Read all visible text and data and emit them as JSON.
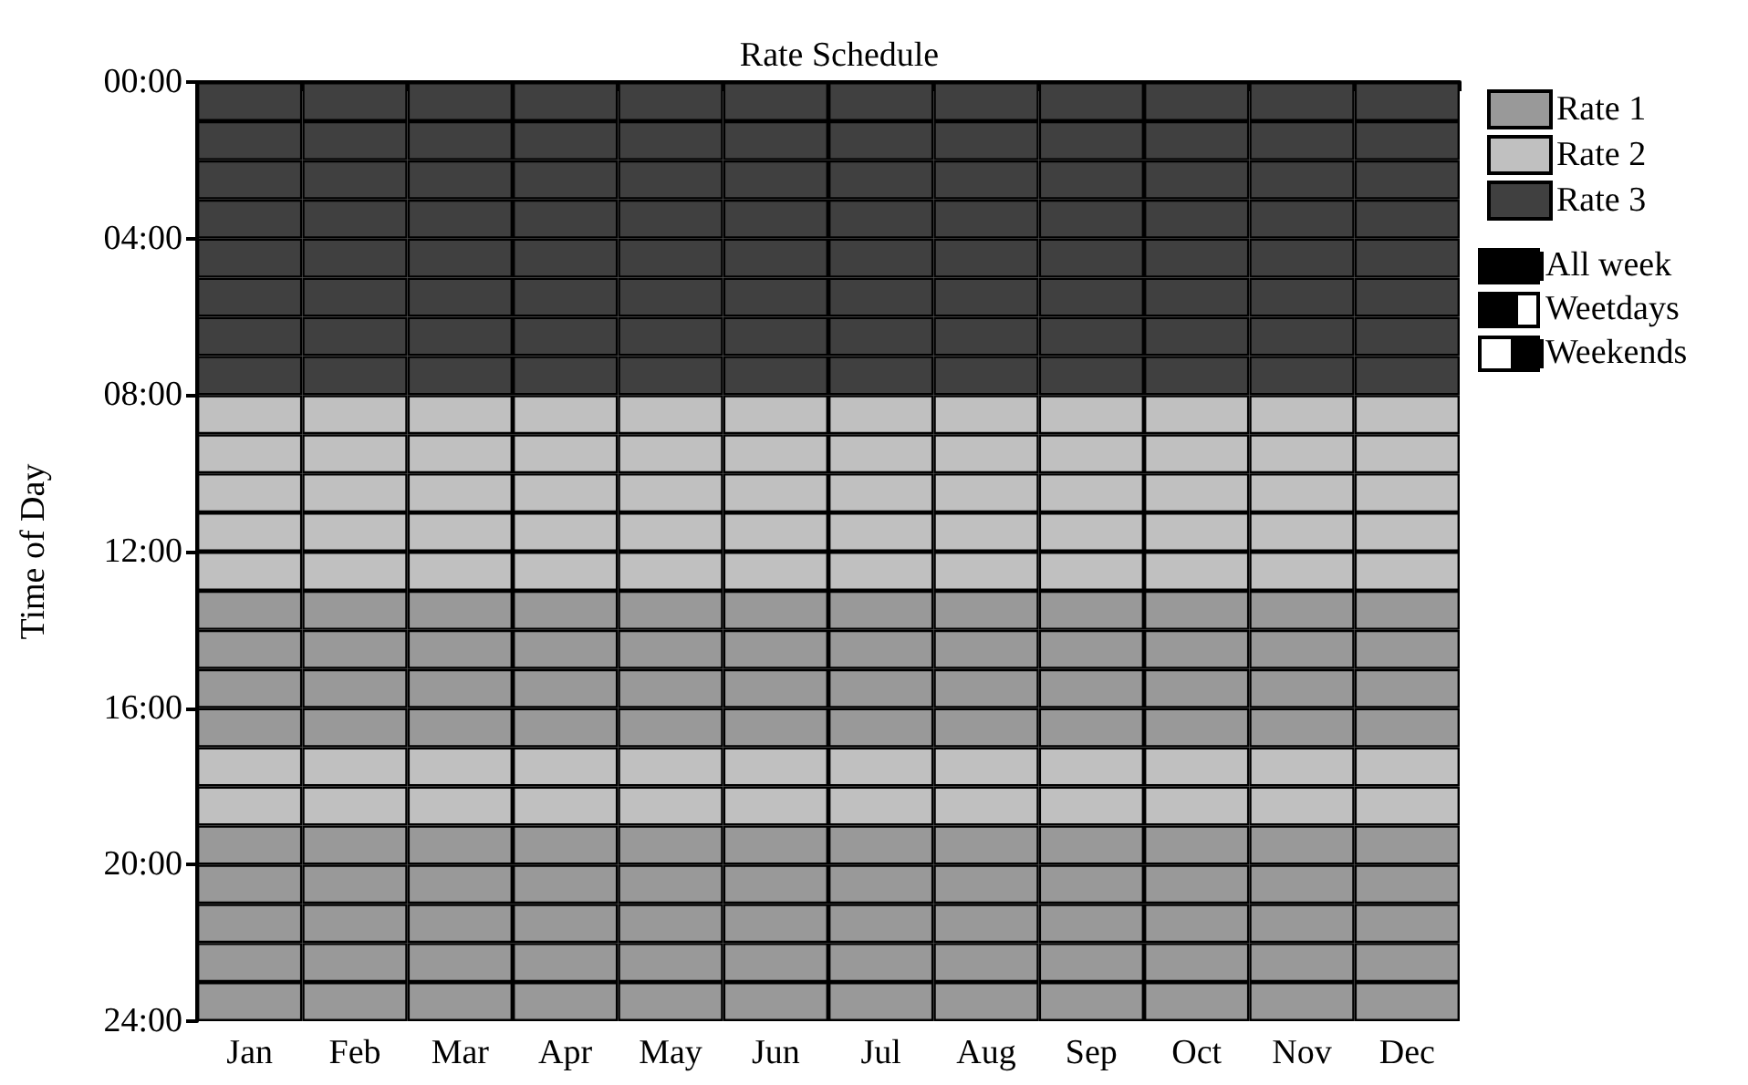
{
  "chart_data": {
    "type": "bar",
    "stacked": true,
    "title": "Rate Schedule",
    "ylabel": "Time of Day",
    "categories": [
      "Jan",
      "Feb",
      "Mar",
      "Apr",
      "May",
      "Jun",
      "Jul",
      "Aug",
      "Sep",
      "Oct",
      "Nov",
      "Dec"
    ],
    "ylim": [
      24,
      0
    ],
    "yticks": [
      {
        "value": 0,
        "label": "00:00"
      },
      {
        "value": 4,
        "label": "04:00"
      },
      {
        "value": 8,
        "label": "08:00"
      },
      {
        "value": 12,
        "label": "12:00"
      },
      {
        "value": 16,
        "label": "16:00"
      },
      {
        "value": 20,
        "label": "20:00"
      },
      {
        "value": 24,
        "label": "24:00"
      }
    ],
    "series": [
      {
        "color": "#404040",
        "values": [
          1,
          1,
          1,
          1,
          1,
          1,
          1,
          1,
          1,
          1,
          1,
          1
        ]
      },
      {
        "color": "#404040",
        "values": [
          1,
          1,
          1,
          1,
          1,
          1,
          1,
          1,
          1,
          1,
          1,
          1
        ]
      },
      {
        "color": "#404040",
        "values": [
          1,
          1,
          1,
          1,
          1,
          1,
          1,
          1,
          1,
          1,
          1,
          1
        ]
      },
      {
        "color": "#404040",
        "values": [
          1,
          1,
          1,
          1,
          1,
          1,
          1,
          1,
          1,
          1,
          1,
          1
        ]
      },
      {
        "color": "#404040",
        "values": [
          1,
          1,
          1,
          1,
          1,
          1,
          1,
          1,
          1,
          1,
          1,
          1
        ]
      },
      {
        "color": "#404040",
        "values": [
          1,
          1,
          1,
          1,
          1,
          1,
          1,
          1,
          1,
          1,
          1,
          1
        ]
      },
      {
        "color": "#404040",
        "values": [
          1,
          1,
          1,
          1,
          1,
          1,
          1,
          1,
          1,
          1,
          1,
          1
        ]
      },
      {
        "name": "Rate 3",
        "color": "#404040",
        "values": [
          1,
          1,
          1,
          1,
          1,
          1,
          1,
          1,
          1,
          1,
          1,
          1
        ]
      },
      {
        "color": "#c0c0c0",
        "values": [
          1,
          1,
          1,
          1,
          1,
          1,
          1,
          1,
          1,
          1,
          1,
          1
        ]
      },
      {
        "color": "#c0c0c0",
        "values": [
          1,
          1,
          1,
          1,
          1,
          1,
          1,
          1,
          1,
          1,
          1,
          1
        ]
      },
      {
        "color": "#c0c0c0",
        "values": [
          1,
          1,
          1,
          1,
          1,
          1,
          1,
          1,
          1,
          1,
          1,
          1
        ]
      },
      {
        "color": "#c0c0c0",
        "values": [
          1,
          1,
          1,
          1,
          1,
          1,
          1,
          1,
          1,
          1,
          1,
          1
        ]
      },
      {
        "color": "#c0c0c0",
        "values": [
          1,
          1,
          1,
          1,
          1,
          1,
          1,
          1,
          1,
          1,
          1,
          1
        ]
      },
      {
        "color": "#999999",
        "values": [
          1,
          1,
          1,
          1,
          1,
          1,
          1,
          1,
          1,
          1,
          1,
          1
        ]
      },
      {
        "color": "#999999",
        "values": [
          1,
          1,
          1,
          1,
          1,
          1,
          1,
          1,
          1,
          1,
          1,
          1
        ]
      },
      {
        "color": "#999999",
        "values": [
          1,
          1,
          1,
          1,
          1,
          1,
          1,
          1,
          1,
          1,
          1,
          1
        ]
      },
      {
        "color": "#999999",
        "values": [
          1,
          1,
          1,
          1,
          1,
          1,
          1,
          1,
          1,
          1,
          1,
          1
        ]
      },
      {
        "color": "#c0c0c0",
        "values": [
          1,
          1,
          1,
          1,
          1,
          1,
          1,
          1,
          1,
          1,
          1,
          1
        ]
      },
      {
        "name": "Rate 2",
        "color": "#c0c0c0",
        "values": [
          1,
          1,
          1,
          1,
          1,
          1,
          1,
          1,
          1,
          1,
          1,
          1
        ]
      },
      {
        "color": "#999999",
        "values": [
          1,
          1,
          1,
          1,
          1,
          1,
          1,
          1,
          1,
          1,
          1,
          1
        ]
      },
      {
        "color": "#999999",
        "values": [
          1,
          1,
          1,
          1,
          1,
          1,
          1,
          1,
          1,
          1,
          1,
          1
        ]
      },
      {
        "color": "#999999",
        "values": [
          1,
          1,
          1,
          1,
          1,
          1,
          1,
          1,
          1,
          1,
          1,
          1
        ]
      },
      {
        "color": "#999999",
        "values": [
          1,
          1,
          1,
          1,
          1,
          1,
          1,
          1,
          1,
          1,
          1,
          1
        ]
      },
      {
        "name": "Rate 1",
        "color": "#999999",
        "values": [
          1,
          1,
          1,
          1,
          1,
          1,
          1,
          1,
          1,
          1,
          1,
          1
        ]
      }
    ],
    "annotations": [
      "All week",
      "Weetdays",
      "Weekends"
    ],
    "legend": "top right"
  }
}
